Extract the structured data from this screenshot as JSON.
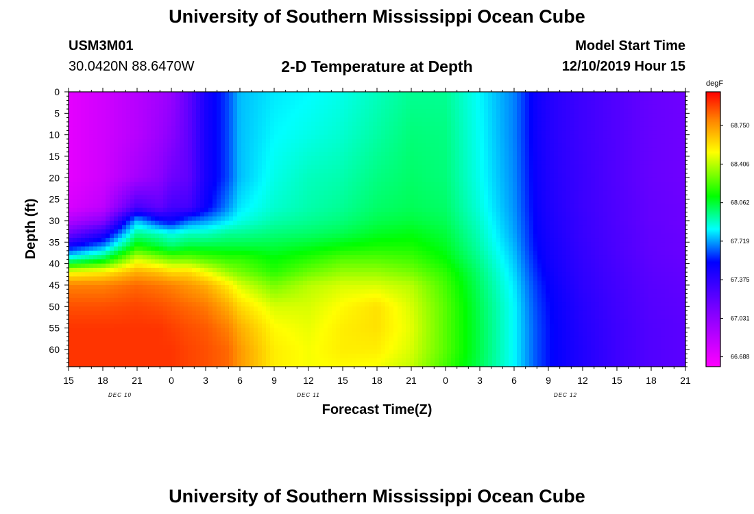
{
  "page": {
    "title_top": "University of Southern Mississippi Ocean Cube",
    "title_bottom": "University of Southern Mississippi Ocean Cube",
    "station_id": "USM3M01",
    "station_location": "30.0420N 88.6470W",
    "plot_title": "2-D Temperature at Depth",
    "model_start_label": "Model Start Time",
    "model_start_value": "12/10/2019 Hour 15"
  },
  "chart_data": {
    "type": "heatmap",
    "title": "2-D Temperature at Depth",
    "xlabel": "Forecast Time(Z)",
    "ylabel": "Depth (ft)",
    "x_tick_labels": [
      "15",
      "18",
      "21",
      "0",
      "3",
      "6",
      "9",
      "12",
      "15",
      "18",
      "21",
      "0",
      "3",
      "6",
      "9",
      "12",
      "15",
      "18",
      "21"
    ],
    "x_range_hours": [
      0,
      54
    ],
    "date_labels": [
      {
        "text": "DEC 10",
        "hour": 4.5
      },
      {
        "text": "DEC 11",
        "hour": 21
      },
      {
        "text": "DEC 12",
        "hour": 43.5
      }
    ],
    "y_tick_labels": [
      "0",
      "5",
      "10",
      "15",
      "20",
      "25",
      "30",
      "35",
      "40",
      "45",
      "50",
      "55",
      "60"
    ],
    "y_range_ft": [
      0,
      64
    ],
    "colorbar": {
      "unit": "degF",
      "min": 66.6,
      "max": 69.05,
      "labels": [
        "68.750",
        "68.406",
        "68.062",
        "67.719",
        "67.375",
        "67.031",
        "66.688"
      ],
      "label_values": [
        68.75,
        68.406,
        68.062,
        67.719,
        67.375,
        67.031,
        66.688
      ]
    },
    "colormap": [
      {
        "t": 0.0,
        "color": "#ff00ff"
      },
      {
        "t": 0.2,
        "color": "#8000ff"
      },
      {
        "t": 0.38,
        "color": "#0000ff"
      },
      {
        "t": 0.5,
        "color": "#00ffff"
      },
      {
        "t": 0.62,
        "color": "#00ff00"
      },
      {
        "t": 0.78,
        "color": "#ffff00"
      },
      {
        "t": 0.9,
        "color": "#ff8000"
      },
      {
        "t": 1.0,
        "color": "#ff0000"
      }
    ],
    "temperature_grid_degF": {
      "hours": [
        0,
        3,
        6,
        8,
        9,
        10.5,
        12,
        14,
        15,
        18,
        21,
        24,
        27,
        30,
        33,
        36,
        39,
        40,
        41,
        42,
        43,
        45,
        48,
        51,
        54
      ],
      "depths": [
        0,
        10,
        20,
        27,
        30,
        33,
        36,
        39,
        42,
        45,
        50,
        55,
        60,
        64
      ],
      "values": [
        [
          66.7,
          66.7,
          66.7,
          66.75,
          66.9,
          67.15,
          67.5,
          67.9,
          68.5,
          68.8,
          68.9,
          68.95,
          68.95,
          68.95
        ],
        [
          66.78,
          66.78,
          66.78,
          66.85,
          67.05,
          67.4,
          67.7,
          68.05,
          68.55,
          68.8,
          68.9,
          68.95,
          68.95,
          68.95
        ],
        [
          66.88,
          66.88,
          66.95,
          67.3,
          67.75,
          67.95,
          68.15,
          68.45,
          68.7,
          68.85,
          68.92,
          68.95,
          68.95,
          68.95
        ],
        [
          66.95,
          66.98,
          67.05,
          67.2,
          67.55,
          67.9,
          68.05,
          68.35,
          68.65,
          68.82,
          68.9,
          68.95,
          68.95,
          68.95
        ],
        [
          67.0,
          67.05,
          67.15,
          67.3,
          67.5,
          67.85,
          68.0,
          68.3,
          68.6,
          68.8,
          68.88,
          68.93,
          68.95,
          68.95
        ],
        [
          67.2,
          67.2,
          67.2,
          67.3,
          67.65,
          67.9,
          68.05,
          68.3,
          68.6,
          68.75,
          68.85,
          68.9,
          68.92,
          68.92
        ],
        [
          67.45,
          67.45,
          67.45,
          67.5,
          67.7,
          67.9,
          68.05,
          68.25,
          68.5,
          68.7,
          68.82,
          68.88,
          68.9,
          68.9
        ],
        [
          67.62,
          67.62,
          67.62,
          67.7,
          67.8,
          67.95,
          68.05,
          68.2,
          68.35,
          68.55,
          68.7,
          68.8,
          68.85,
          68.85
        ],
        [
          67.75,
          67.75,
          67.75,
          67.8,
          67.85,
          67.95,
          68.05,
          68.2,
          68.3,
          68.45,
          68.6,
          68.7,
          68.75,
          68.75
        ],
        [
          67.8,
          67.82,
          67.85,
          67.88,
          67.92,
          67.98,
          68.05,
          68.12,
          68.18,
          68.3,
          68.45,
          68.52,
          68.55,
          68.55
        ],
        [
          67.82,
          67.85,
          67.9,
          67.92,
          67.95,
          68.0,
          68.08,
          68.18,
          68.28,
          68.4,
          68.45,
          68.48,
          68.5,
          68.5
        ],
        [
          67.85,
          67.88,
          67.92,
          67.95,
          67.98,
          68.03,
          68.12,
          68.25,
          68.35,
          68.45,
          68.52,
          68.55,
          68.55,
          68.52
        ],
        [
          67.9,
          67.93,
          67.97,
          68.0,
          68.03,
          68.08,
          68.15,
          68.25,
          68.35,
          68.45,
          68.58,
          68.58,
          68.55,
          68.5
        ],
        [
          67.95,
          67.98,
          68.0,
          68.02,
          68.05,
          68.1,
          68.15,
          68.22,
          68.3,
          68.4,
          68.45,
          68.47,
          68.45,
          68.42
        ],
        [
          67.95,
          67.97,
          67.98,
          68.0,
          68.02,
          68.05,
          68.08,
          68.12,
          68.18,
          68.22,
          68.25,
          68.25,
          68.25,
          68.22
        ],
        [
          67.82,
          67.83,
          67.84,
          67.86,
          67.88,
          67.9,
          67.92,
          67.95,
          67.98,
          68.0,
          68.02,
          68.03,
          68.03,
          68.02
        ],
        [
          67.68,
          67.68,
          67.69,
          67.7,
          67.71,
          67.72,
          67.74,
          67.76,
          67.78,
          67.8,
          67.82,
          67.82,
          67.82,
          67.82
        ],
        [
          67.58,
          67.58,
          67.59,
          67.6,
          67.61,
          67.62,
          67.63,
          67.65,
          67.67,
          67.69,
          67.71,
          67.72,
          67.72,
          67.72
        ],
        [
          67.48,
          67.48,
          67.49,
          67.5,
          67.51,
          67.52,
          67.53,
          67.55,
          67.57,
          67.59,
          67.61,
          67.62,
          67.62,
          67.62
        ],
        [
          67.42,
          67.42,
          67.43,
          67.44,
          67.45,
          67.46,
          67.47,
          67.48,
          67.5,
          67.52,
          67.54,
          67.55,
          67.55,
          67.55
        ],
        [
          67.38,
          67.38,
          67.39,
          67.4,
          67.41,
          67.42,
          67.43,
          67.44,
          67.45,
          67.47,
          67.49,
          67.5,
          67.5,
          67.5
        ],
        [
          67.32,
          67.32,
          67.33,
          67.33,
          67.34,
          67.34,
          67.35,
          67.36,
          67.37,
          67.38,
          67.4,
          67.41,
          67.42,
          67.42
        ],
        [
          67.25,
          67.25,
          67.25,
          67.26,
          67.26,
          67.27,
          67.27,
          67.28,
          67.29,
          67.3,
          67.31,
          67.32,
          67.32,
          67.32
        ],
        [
          67.18,
          67.18,
          67.18,
          67.19,
          67.19,
          67.2,
          67.2,
          67.21,
          67.22,
          67.23,
          67.24,
          67.25,
          67.25,
          67.25
        ],
        [
          67.15,
          67.15,
          67.15,
          67.16,
          67.16,
          67.17,
          67.17,
          67.18,
          67.19,
          67.2,
          67.21,
          67.22,
          67.22,
          67.22
        ]
      ]
    }
  }
}
